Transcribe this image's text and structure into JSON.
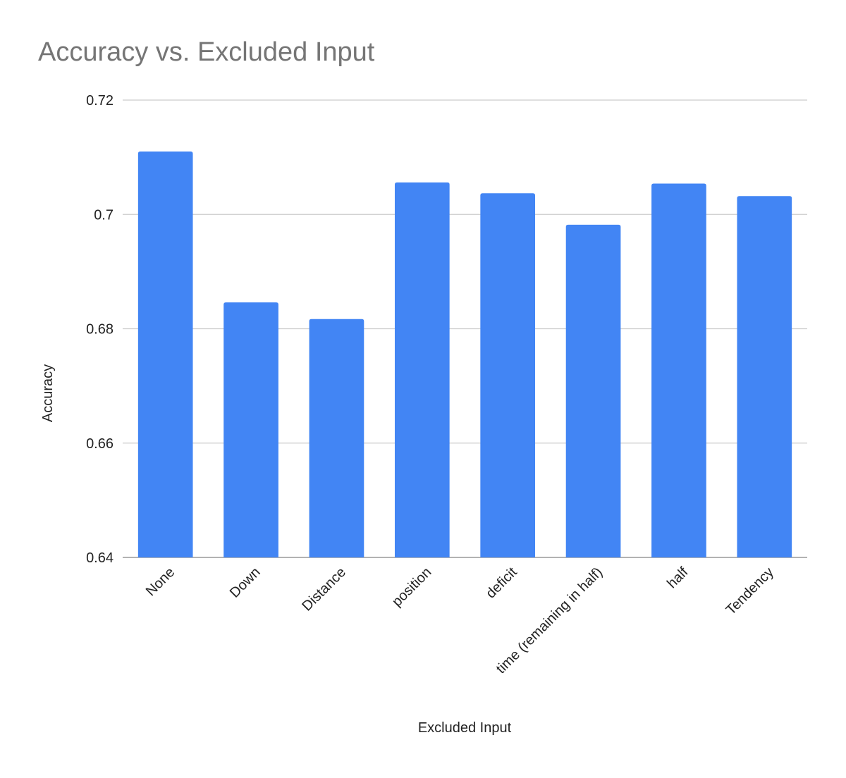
{
  "chart_data": {
    "type": "bar",
    "title": "Accuracy vs. Excluded Input",
    "xlabel": "Excluded Input",
    "ylabel": "Accuracy",
    "categories": [
      "None",
      "Down",
      "Distance",
      "position",
      "deficit",
      "time (remaining in half)",
      "half",
      "Tendency"
    ],
    "values": [
      0.711,
      0.6846,
      0.6817,
      0.7056,
      0.7037,
      0.6982,
      0.7054,
      0.7032
    ],
    "ylim": [
      0.64,
      0.72
    ],
    "yticks": [
      0.64,
      0.66,
      0.68,
      0.7,
      0.72
    ],
    "ytick_labels": [
      "0.64",
      "0.66",
      "0.68",
      "0.7",
      "0.72"
    ],
    "grid": true,
    "legend": "none",
    "colors": {
      "bar": "#4285f4",
      "title": "#757575",
      "text": "#222222",
      "grid": "#cccccc",
      "baseline": "#999999"
    }
  }
}
